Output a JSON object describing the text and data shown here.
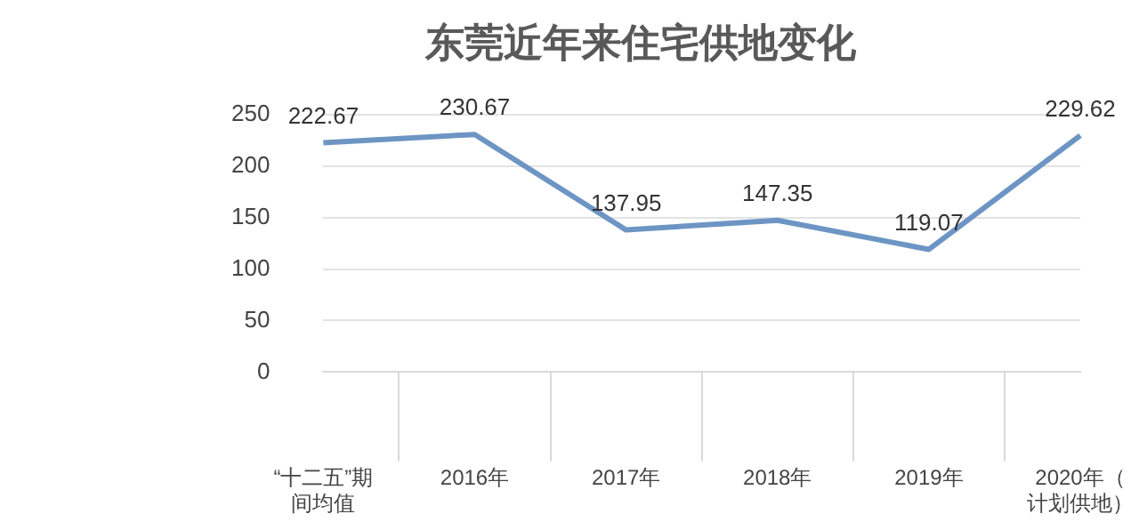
{
  "chart_data": {
    "type": "line",
    "title": "东莞近年来住宅供地变化",
    "categories": [
      "“十二五”期间均值",
      "2016年",
      "2017年",
      "2018年",
      "2019年",
      "2020年（计划供地）"
    ],
    "series": [
      {
        "color": "#6d95c4",
        "values": [
          222.67,
          230.67,
          137.95,
          147.35,
          119.07,
          229.62
        ]
      }
    ],
    "ylim": [
      0,
      250
    ],
    "yticks": [
      0,
      50,
      100,
      150,
      200,
      250
    ],
    "grid": "y",
    "legend": false,
    "marker": "none",
    "data_labels": true
  }
}
